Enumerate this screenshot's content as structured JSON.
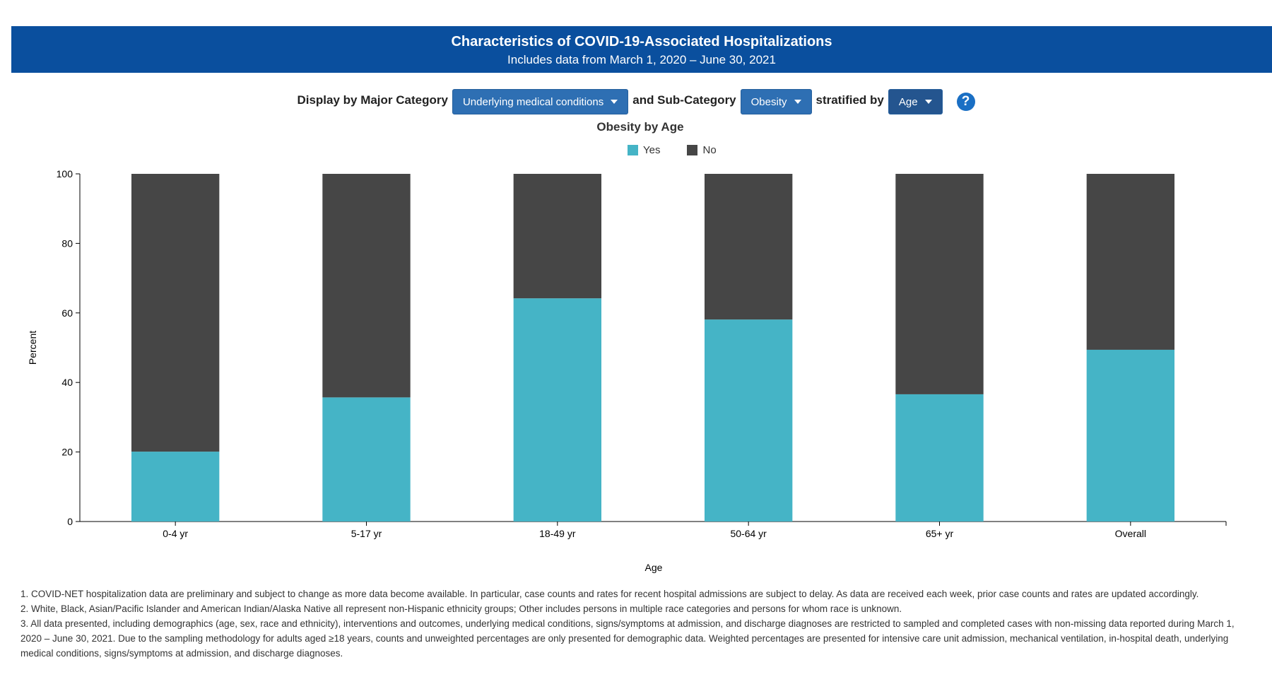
{
  "header": {
    "title": "Characteristics of COVID-19-Associated Hospitalizations",
    "subtitle": "Includes data from March 1, 2020 – June 30, 2021"
  },
  "controls": {
    "major_label": "Display by Major Category",
    "major_value": "Underlying medical conditions",
    "sub_label": "and Sub-Category",
    "sub_value": "Obesity",
    "strat_label": "stratified by",
    "strat_value": "Age",
    "help_icon": "question-circle-icon"
  },
  "chart_data": {
    "type": "bar",
    "stacked": true,
    "title": "Obesity by Age",
    "xlabel": "Age",
    "ylabel": "Percent",
    "ylim": [
      0,
      100
    ],
    "yticks": [
      0,
      20,
      40,
      60,
      80,
      100
    ],
    "categories": [
      "0-4 yr",
      "5-17 yr",
      "18-49 yr",
      "50-64 yr",
      "65+ yr",
      "Overall"
    ],
    "series": [
      {
        "name": "Yes",
        "color": "#45b4c6",
        "values": [
          20.1,
          35.7,
          64.2,
          58.1,
          36.6,
          49.4
        ]
      },
      {
        "name": "No",
        "color": "#464646",
        "values": [
          79.9,
          64.3,
          35.8,
          41.9,
          63.4,
          50.6
        ]
      }
    ],
    "legend_position": "top-center",
    "grid": false
  },
  "notes": [
    "1. COVID-NET hospitalization data are preliminary and subject to change as more data become available. In particular, case counts and rates for recent hospital admissions are subject to delay. As data are received each week, prior case counts and rates are updated accordingly.",
    "2. White, Black, Asian/Pacific Islander and American Indian/Alaska Native all represent non-Hispanic ethnicity groups; Other includes persons in multiple race categories and persons for whom race is unknown.",
    "3. All data presented, including demographics (age, sex, race and ethnicity), interventions and outcomes, underlying medical conditions, signs/symptoms at admission, and discharge diagnoses are restricted to sampled and completed cases with non-missing data reported during March 1, 2020 – June 30, 2021. Due to the sampling methodology for adults aged ≥18 years, counts and unweighted percentages are only presented for demographic data. Weighted percentages are presented for intensive care unit admission, mechanical ventilation, in-hospital death, underlying medical conditions, signs/symptoms at admission, and discharge diagnoses."
  ]
}
